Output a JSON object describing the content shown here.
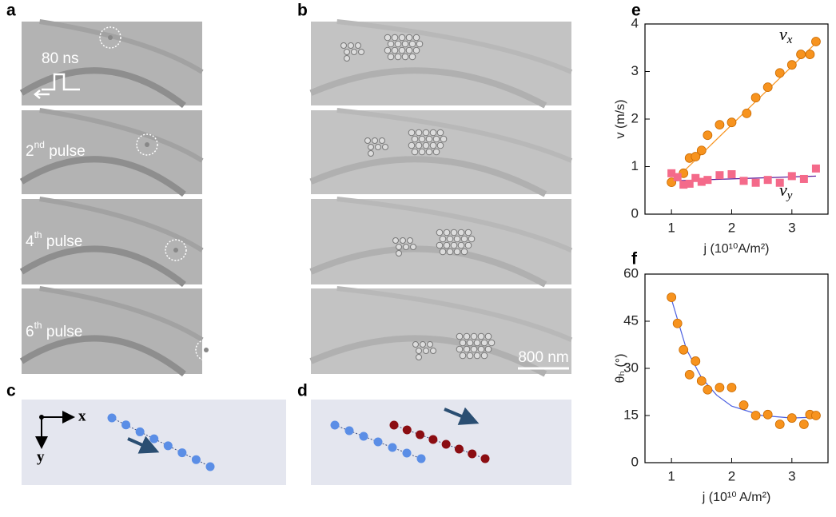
{
  "panels": {
    "labels": [
      "a",
      "b",
      "c",
      "d",
      "e",
      "f"
    ],
    "pulse_width": "80 ns",
    "pulses": [
      {
        "n": "2",
        "sup": "nd",
        "word": "pulse"
      },
      {
        "n": "4",
        "sup": "th",
        "word": "pulse"
      },
      {
        "n": "6",
        "sup": "th",
        "word": "pulse"
      }
    ],
    "scale_bar": "800 nm",
    "axes": {
      "x": "x",
      "y": "y"
    }
  },
  "chart_data": [
    {
      "type": "scatter",
      "ylabel": "v (m/s)",
      "xlabel": "j (10¹⁰A/m²)",
      "xlim": [
        0.56,
        3.6
      ],
      "xticks": [
        1,
        2,
        3
      ],
      "ylim": [
        0,
        4
      ],
      "yticks": [
        0,
        1,
        2,
        3,
        4
      ],
      "annotations": [
        {
          "text": "v",
          "sub": "x"
        },
        {
          "text": "v",
          "sub": "y"
        }
      ],
      "series": [
        {
          "color": "#f7931e",
          "marker": "circle",
          "x": [
            1.0,
            1.2,
            1.3,
            1.4,
            1.5,
            1.6,
            1.8,
            2.0,
            2.25,
            2.4,
            2.6,
            2.8,
            3.0,
            3.15,
            3.3,
            3.4
          ],
          "values": [
            0.67,
            0.86,
            1.18,
            1.21,
            1.34,
            1.66,
            1.88,
            1.93,
            2.12,
            2.45,
            2.67,
            2.97,
            3.14,
            3.36,
            3.36,
            3.63
          ]
        },
        {
          "color": "#f46a8a",
          "marker": "square",
          "x": [
            1.0,
            1.1,
            1.2,
            1.3,
            1.4,
            1.5,
            1.6,
            1.8,
            2.0,
            2.2,
            2.4,
            2.6,
            2.8,
            3.0,
            3.2,
            3.4
          ],
          "values": [
            0.86,
            0.78,
            0.62,
            0.64,
            0.76,
            0.68,
            0.72,
            0.82,
            0.84,
            0.7,
            0.66,
            0.72,
            0.66,
            0.8,
            0.74,
            0.96
          ]
        },
        {
          "color": "#f7931e",
          "marker": "line",
          "x": [
            1.0,
            3.4
          ],
          "values": [
            0.65,
            3.6
          ]
        },
        {
          "color": "#5a1a9a",
          "marker": "line",
          "x": [
            1.0,
            3.4
          ],
          "values": [
            0.7,
            0.8
          ]
        }
      ]
    },
    {
      "type": "scatter",
      "ylabel": "θₕ (°)",
      "xlabel": "j (10¹⁰ A/m²)",
      "xlim": [
        0.56,
        3.6
      ],
      "xticks": [
        1,
        2,
        3
      ],
      "ylim": [
        0,
        60
      ],
      "yticks": [
        0,
        15,
        30,
        45,
        60
      ],
      "series": [
        {
          "color": "#f7931e",
          "marker": "circle",
          "x": [
            1.0,
            1.1,
            1.2,
            1.3,
            1.4,
            1.5,
            1.6,
            1.8,
            2.0,
            2.2,
            2.4,
            2.6,
            2.8,
            3.0,
            3.2,
            3.3,
            3.4
          ],
          "values": [
            52.6,
            44.3,
            35.9,
            28,
            32.3,
            26,
            23.2,
            23.9,
            23.9,
            18.3,
            15,
            15.3,
            12.2,
            14.2,
            12.2,
            15.3,
            15
          ]
        },
        {
          "color": "#4a5fe0",
          "marker": "line",
          "x": [
            1.0,
            1.25,
            1.5,
            1.75,
            2.0,
            2.5,
            3.0,
            3.4
          ],
          "values": [
            52,
            36,
            27,
            21.5,
            18,
            15,
            14.2,
            14.5
          ]
        }
      ]
    }
  ]
}
